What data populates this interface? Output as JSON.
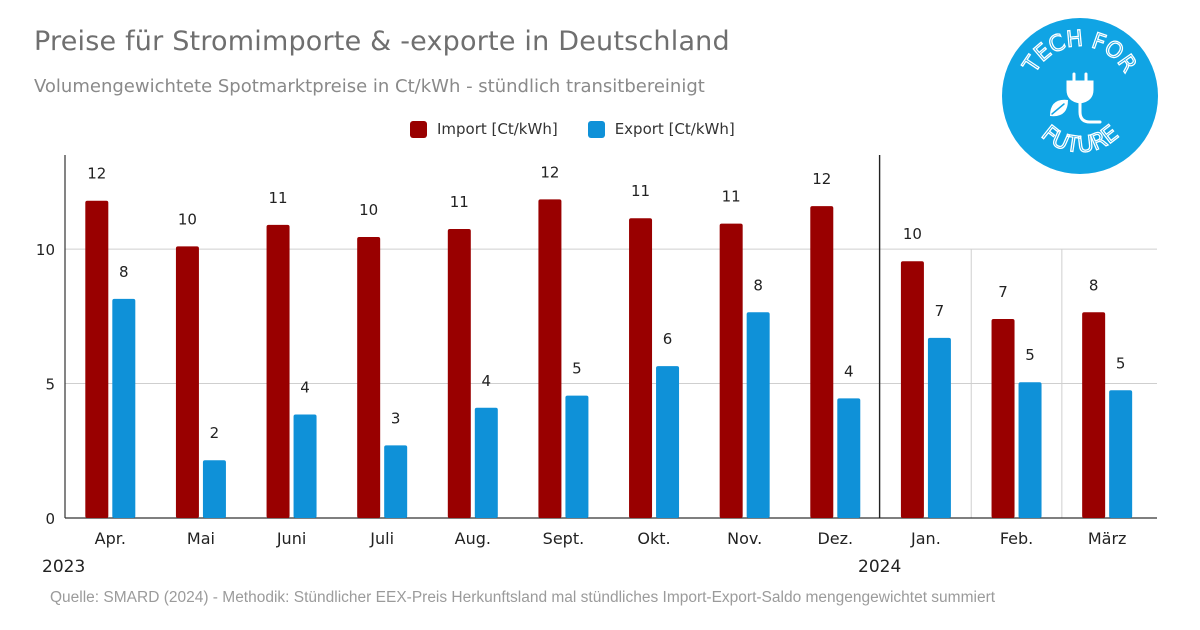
{
  "header": {
    "title": "Preise für Stromimporte & -exporte in Deutschland",
    "subtitle": "Volumengewichtete Spotmarktpreise in Ct/kWh - stündlich transitbereinigt"
  },
  "logo": {
    "line1": "TECH FOR",
    "line2": "FUTURE",
    "icon": "plug-leaf-icon",
    "color": "#10a4e4"
  },
  "footer": {
    "source": "Quelle: SMARD (2024) - Methodik: Stündlicher EEX-Preis Herkunftsland mal stündliches Import-Export-Saldo mengengewichtet summiert"
  },
  "chart_data": {
    "type": "bar",
    "title": "Preise für Stromimporte & -exporte in Deutschland",
    "subtitle": "Volumengewichtete Spotmarktpreise in Ct/kWh - stündlich transitbereinigt",
    "categories": [
      "Apr.",
      "Mai",
      "Juni",
      "Juli",
      "Aug.",
      "Sept.",
      "Okt.",
      "Nov.",
      "Dez.",
      "Jan.",
      "Feb.",
      "März"
    ],
    "year_labels": [
      "2023",
      "2024"
    ],
    "year_split_after": "Dez.",
    "series": [
      {
        "name": "Import [Ct/kWh]",
        "color": "#990000",
        "values": [
          11.8,
          10.1,
          10.9,
          10.45,
          10.75,
          11.85,
          11.15,
          10.95,
          11.6,
          9.55,
          7.4,
          7.65
        ],
        "labels": [
          "12",
          "10",
          "11",
          "10",
          "11",
          "12",
          "11",
          "11",
          "12",
          "10",
          "7",
          "8"
        ]
      },
      {
        "name": "Export [Ct/kWh]",
        "color": "#0f91d8",
        "values": [
          8.15,
          2.15,
          3.85,
          2.7,
          4.1,
          4.55,
          5.65,
          7.65,
          4.45,
          6.7,
          5.05,
          4.75
        ],
        "labels": [
          "8",
          "2",
          "4",
          "3",
          "4",
          "5",
          "6",
          "8",
          "4",
          "7",
          "5",
          "5"
        ]
      }
    ],
    "y_ticks": [
      "0",
      "5",
      "10"
    ],
    "ylim": [
      0,
      13.5
    ],
    "grid": true,
    "legend": "top-center"
  }
}
